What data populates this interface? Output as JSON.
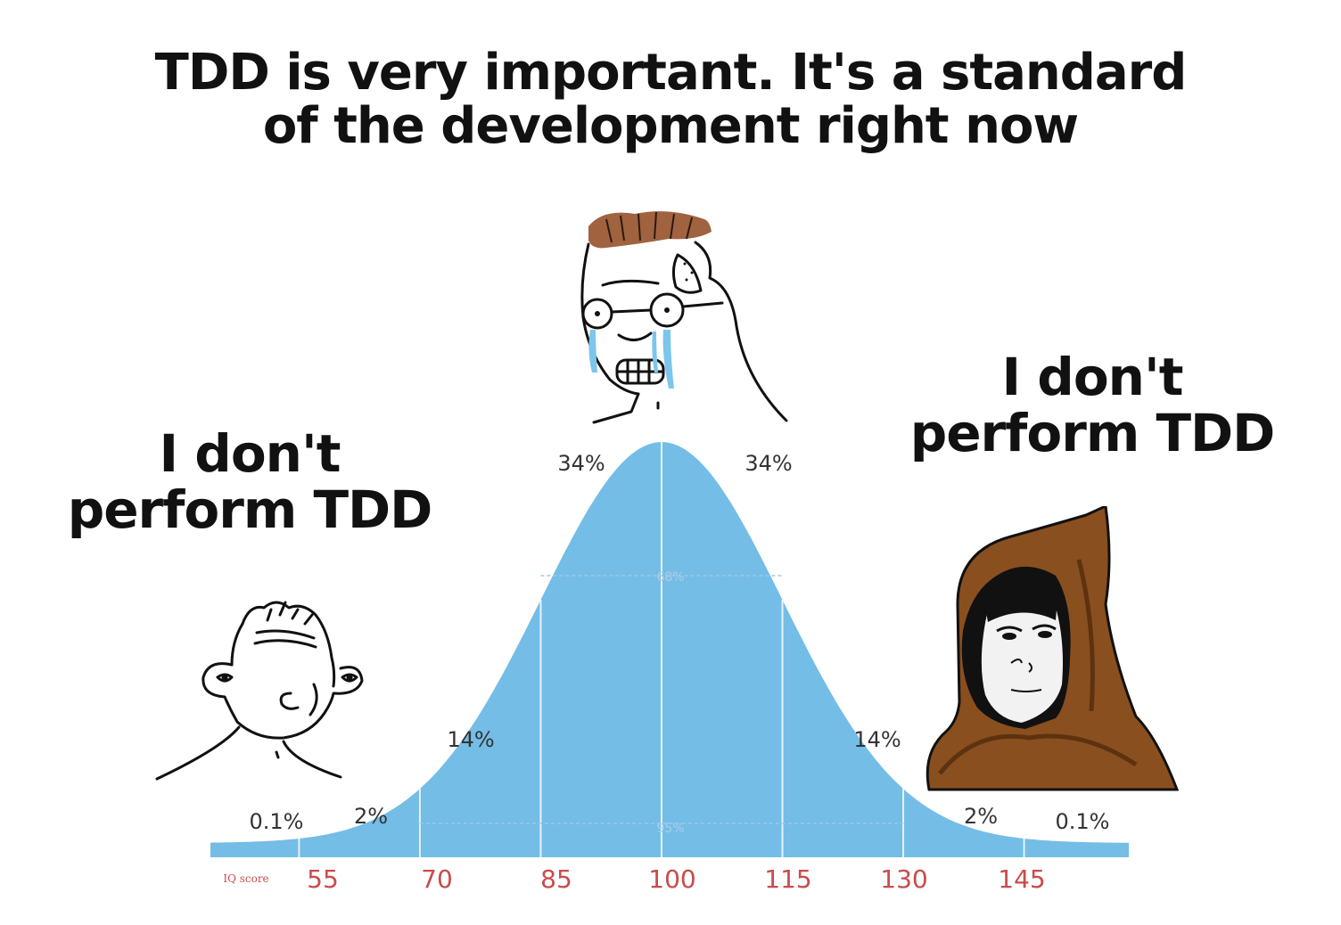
{
  "top_caption": {
    "line1": "TDD is very important. It's a standard",
    "line2": "of the development right now"
  },
  "left_caption": {
    "line1": "I don't",
    "line2": "perform TDD"
  },
  "right_caption": {
    "line1": "I don't",
    "line2": "perform TDD"
  },
  "characters": {
    "left": "wojak-simple-icon",
    "middle": "wojak-crying-glasses-icon",
    "right": "wojak-hooded-monk-icon"
  },
  "chart_data": {
    "type": "area",
    "xlabel": "IQ score",
    "x_ticks": [
      "55",
      "70",
      "85",
      "100",
      "115",
      "130",
      "145"
    ],
    "segment_labels": [
      "0.1%",
      "2%",
      "14%",
      "34%",
      "34%",
      "14%",
      "2%",
      "0.1%"
    ],
    "inner_labels": [
      "68%",
      "95%"
    ],
    "mean": 100,
    "sd": 15,
    "colors": {
      "fill": "#74bde6",
      "ticks": "#c94c4c"
    }
  }
}
